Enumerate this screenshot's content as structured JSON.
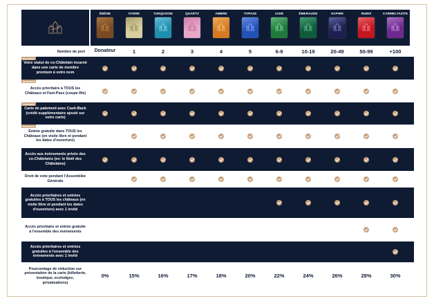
{
  "cards": [
    {
      "name": "ÉBÈNE",
      "color": "#7a4a24",
      "accent": "#c98f4e"
    },
    {
      "name": "IVOIRE",
      "color": "#d7cf9e",
      "accent": "#8a7b4a"
    },
    {
      "name": "TURQUOISE",
      "color": "#1f8fb0",
      "accent": "#9fe0f0"
    },
    {
      "name": "QUARTZ",
      "color": "#e7a7c9",
      "accent": "#b8628f"
    },
    {
      "name": "AMBRE",
      "color": "#d57a22",
      "accent": "#ffd28a"
    },
    {
      "name": "TOPAZE",
      "color": "#2352b8",
      "accent": "#9bb6ff"
    },
    {
      "name": "JADE",
      "color": "#1f7a3c",
      "accent": "#8fe0a8"
    },
    {
      "name": "ÉMERAUDE",
      "color": "#0f5c3a",
      "accent": "#6fd0a0"
    },
    {
      "name": "SAPHIR",
      "color": "#1c1f4f",
      "accent": "#8f96d8"
    },
    {
      "name": "RUBIS",
      "color": "#c4161f",
      "accent": "#ff9aa0"
    },
    {
      "name": "CARMELTAZITE",
      "color": "#6d2a8c",
      "accent": "#d8a0f0"
    }
  ],
  "port_row": {
    "label": "Nombre de port",
    "values": [
      "Donateur",
      "1",
      "2",
      "3",
      "4",
      "5",
      "6-9",
      "10-19",
      "20-49",
      "50-99",
      "+100"
    ]
  },
  "benefits": [
    {
      "label": "Votre statut de co-Châtelain incarné dans une carte de membre premium à votre nom",
      "tag": "Nouveauté",
      "checks": [
        1,
        1,
        1,
        1,
        1,
        1,
        1,
        1,
        1,
        1,
        1
      ]
    },
    {
      "label": "Accès prioritaire à TOUS les Châteaux et Fast-Pass (coupe-file)",
      "tag": "Nouveauté",
      "checks": [
        1,
        1,
        1,
        1,
        1,
        1,
        1,
        1,
        1,
        1,
        1
      ]
    },
    {
      "label": "Carte de paiement avec Cash-Back (crédit supplémentaire ajouté sur votre carte)",
      "tag": "Nouveauté",
      "checks": [
        1,
        1,
        1,
        1,
        1,
        1,
        1,
        1,
        1,
        1,
        1
      ]
    },
    {
      "label": "Entrée gratuite dans TOUS les Châteaux (en visite libre et pendant les dates d'ouverture)",
      "tag": "Nouveauté",
      "checks": [
        0,
        1,
        1,
        1,
        1,
        1,
        1,
        1,
        1,
        1,
        1
      ]
    },
    {
      "label": "Accès aux évènements privés des co-Châtelains (ex: le Noël des Châtelains)",
      "tag": "",
      "checks": [
        1,
        1,
        1,
        1,
        1,
        1,
        1,
        1,
        1,
        1,
        1
      ]
    },
    {
      "label": "Droit de vote pendant l'Assemblée Générale",
      "tag": "",
      "checks": [
        0,
        1,
        1,
        1,
        1,
        1,
        1,
        1,
        1,
        1,
        1
      ]
    },
    {
      "label": "Accès prioritaires et entrées gratuites à TOUS les châteaux (en visite libre et pendant les dates d'ouverture) avec 1 invité",
      "tag": "",
      "checks": [
        0,
        0,
        0,
        0,
        0,
        0,
        1,
        1,
        1,
        1,
        1
      ]
    },
    {
      "label": "Accès prioritaire et entrée gratuite à l'ensemble des évènements",
      "tag": "",
      "checks": [
        0,
        0,
        0,
        0,
        0,
        0,
        0,
        0,
        0,
        1,
        1
      ]
    },
    {
      "label": "Accès prioritaires et entrées gratuites à l'ensemble des évènements avec 1 invité",
      "tag": "",
      "checks": [
        0,
        0,
        0,
        0,
        0,
        0,
        0,
        0,
        0,
        0,
        1
      ]
    }
  ],
  "discount_row": {
    "label": "Pourcentage de réduction sur présentation de la carte (billetterie, boutique, ecolodges, privatisations)",
    "values": [
      "0%",
      "15%",
      "16%",
      "17%",
      "18%",
      "20%",
      "22%",
      "24%",
      "26%",
      "28%",
      "30%"
    ]
  }
}
